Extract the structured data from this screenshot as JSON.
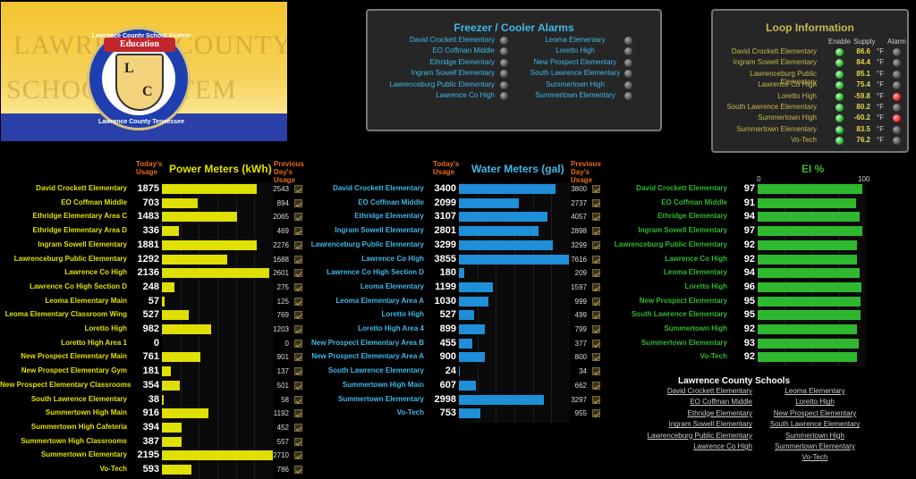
{
  "logo": {
    "bg_words": [
      "LAWRENCE COUNTY",
      "SCHOOL SYSTEM"
    ],
    "ring_top": "Lawrence County School System",
    "ring_bottom": "Lawrence County Tennessee",
    "ribbon": "Education",
    "letters": [
      "L",
      "C"
    ]
  },
  "freezer": {
    "title": "Freezer / Cooler Alarms",
    "left": [
      "David Crockett Elementary",
      "EO Coffman Middle",
      "Ethridge Elementary",
      "Ingram Sowell Elementary",
      "Lawrenceburg Public Elementary",
      "Lawrence Co High"
    ],
    "right": [
      "Leoma Elementary",
      "Loretto High",
      "New Prospect Elementary",
      "South Lawrence Elementary",
      "Summertown High",
      "Summertown Elementary"
    ]
  },
  "loop": {
    "title": "Loop Information",
    "col_enable": "Enable",
    "col_supply": "Supply",
    "col_alarm": "Alarm",
    "unit": "°F",
    "rows": [
      {
        "name": "David Crockett Elementary",
        "supply": "86.6",
        "alarm": false
      },
      {
        "name": "Ingram Sowell Elementary",
        "supply": "84.4",
        "alarm": false
      },
      {
        "name": "Lawrenceburg Public Elementary",
        "supply": "85.1",
        "alarm": false
      },
      {
        "name": "Lawrence Co High",
        "supply": "75.4",
        "alarm": false
      },
      {
        "name": "Loretto High",
        "supply": "-59.8",
        "alarm": true
      },
      {
        "name": "South Lawrence Elementary",
        "supply": "80.2",
        "alarm": false
      },
      {
        "name": "Summertown High",
        "supply": "-60.2",
        "alarm": true
      },
      {
        "name": "Summertown Elementary",
        "supply": "83.5",
        "alarm": false
      },
      {
        "name": "Vo-Tech",
        "supply": "76.2",
        "alarm": false
      }
    ]
  },
  "power": {
    "title": "Power Meters (kWh)",
    "today_label": "Today's Usage",
    "prev_label": "Previous Day's Usage",
    "color": "#e0e000",
    "max": 2200,
    "rows": [
      {
        "name": "David Crockett Elementary",
        "today": 1875,
        "prev": "2543"
      },
      {
        "name": "EO Coffman Middle",
        "today": 703,
        "prev": "894"
      },
      {
        "name": "Ethridge Elementary Area C",
        "today": 1483,
        "prev": "2065"
      },
      {
        "name": "Ethridge Elementary Area D",
        "today": 336,
        "prev": "469"
      },
      {
        "name": "Ingram Sowell Elementary",
        "today": 1881,
        "prev": "2276"
      },
      {
        "name": "Lawrenceburg Public Elementary",
        "today": 1292,
        "prev": "1688"
      },
      {
        "name": "Lawrence Co High",
        "today": 2136,
        "prev": "2601"
      },
      {
        "name": "Lawrence Co High Section D",
        "today": 248,
        "prev": "275"
      },
      {
        "name": "Leoma Elementary Main",
        "today": 57,
        "prev": "125"
      },
      {
        "name": "Leoma Elementary Classroom Wing",
        "today": 527,
        "prev": "769"
      },
      {
        "name": "Loretto High",
        "today": 982,
        "prev": "1203"
      },
      {
        "name": "Loretto High Area 1",
        "today": 0,
        "prev": "0"
      },
      {
        "name": "New Prospect Elementary Main",
        "today": 761,
        "prev": "901"
      },
      {
        "name": "New Prospect Elementary Gym",
        "today": 181,
        "prev": "137"
      },
      {
        "name": "New Prospect Elementary Classrooms",
        "today": 354,
        "prev": "501"
      },
      {
        "name": "South Lawrence Elementary",
        "today": 38,
        "prev": "58"
      },
      {
        "name": "Summertown High Main",
        "today": 916,
        "prev": "1192"
      },
      {
        "name": "Summertown High Cafeteria",
        "today": 394,
        "prev": "452"
      },
      {
        "name": "Summertown High Classrooms",
        "today": 387,
        "prev": "557"
      },
      {
        "name": "Summertown Elementary",
        "today": 2195,
        "prev": "2710"
      },
      {
        "name": "Vo-Tech",
        "today": 593,
        "prev": "786"
      }
    ]
  },
  "water": {
    "title": "Water Meters (gal)",
    "today_label": "Today's Usage",
    "prev_label": "Previous Day's Usage",
    "color": "#1e8fd8",
    "max": 3900,
    "rows": [
      {
        "name": "David Crockett Elementary",
        "today": 3400,
        "prev": "3800"
      },
      {
        "name": "EO Coffman Middle",
        "today": 2099,
        "prev": "2737"
      },
      {
        "name": "Ethridge Elementary",
        "today": 3107,
        "prev": "4057"
      },
      {
        "name": "Ingram Sowell Elementary",
        "today": 2801,
        "prev": "2898"
      },
      {
        "name": "Lawrenceburg Public Elementary",
        "today": 3299,
        "prev": "3299"
      },
      {
        "name": "Lawrence Co High",
        "today": 3855,
        "prev": "7616"
      },
      {
        "name": "Lawrence Co High Section D",
        "today": 180,
        "prev": "209"
      },
      {
        "name": "Leoma Elementary",
        "today": 1199,
        "prev": "1597"
      },
      {
        "name": "Leoma Elementary Area A",
        "today": 1030,
        "prev": "999"
      },
      {
        "name": "Loretto High",
        "today": 527,
        "prev": "499"
      },
      {
        "name": "Loretto High Area 4",
        "today": 899,
        "prev": "799"
      },
      {
        "name": "New Prospect Elementary Area B",
        "today": 455,
        "prev": "377"
      },
      {
        "name": "New Prospect Elementary Area A",
        "today": 900,
        "prev": "800"
      },
      {
        "name": "South Lawrence Elementary",
        "today": 24,
        "prev": "34"
      },
      {
        "name": "Summertown High Main",
        "today": 607,
        "prev": "662"
      },
      {
        "name": "Summertown Elementary",
        "today": 2998,
        "prev": "3297"
      },
      {
        "name": "Vo-Tech",
        "today": 753,
        "prev": "955"
      }
    ]
  },
  "ei": {
    "title": "EI %",
    "scale_min": "0",
    "scale_max": "100",
    "color": "#2fb82f",
    "max": 100,
    "rows": [
      {
        "name": "David Crockett Elementary",
        "value": 97
      },
      {
        "name": "EO Coffman Middle",
        "value": 91
      },
      {
        "name": "Ethridge Elementary",
        "value": 94
      },
      {
        "name": "Ingram Sowell Elementary",
        "value": 97
      },
      {
        "name": "Lawrenceburg Public Elementary",
        "value": 92
      },
      {
        "name": "Lawrence Co High",
        "value": 92
      },
      {
        "name": "Leoma Elementary",
        "value": 94
      },
      {
        "name": "Loretto High",
        "value": 96
      },
      {
        "name": "New Prospect Elementary",
        "value": 95
      },
      {
        "name": "South Lawrence Elementary",
        "value": 95
      },
      {
        "name": "Summertown High",
        "value": 92
      },
      {
        "name": "Summertown Elementary",
        "value": 93
      },
      {
        "name": "Vo-Tech",
        "value": 92
      }
    ]
  },
  "schools": {
    "title": "Lawrence County Schools",
    "left": [
      "David Crockett Elementary",
      "EO Coffman Middle",
      "Ethridge Elementary",
      "Ingram Sowell Elementary",
      "Lawrenceburg Public Elementary",
      "Lawrence Co High"
    ],
    "right": [
      "Leoma Elementary",
      "Loretto High",
      "New Prospect Elementary",
      "South Lawrence Elementary",
      "Summertown High",
      "Summertown Elementary",
      "Vo-Tech"
    ]
  }
}
